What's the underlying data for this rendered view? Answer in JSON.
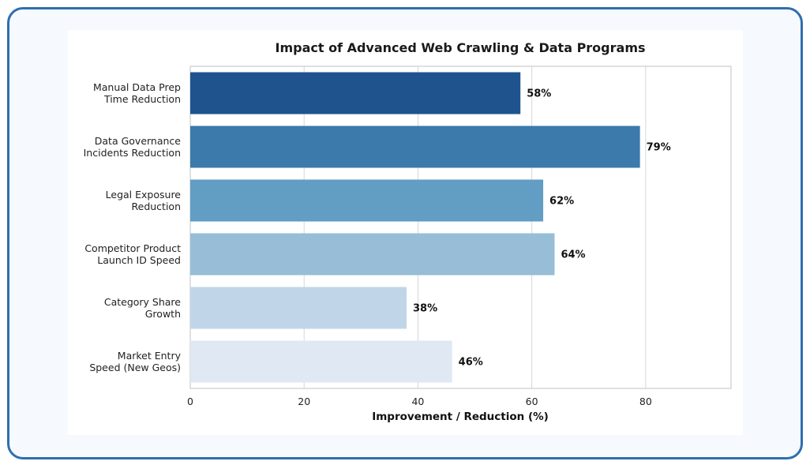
{
  "chart_data": {
    "type": "bar",
    "orientation": "horizontal",
    "title": "Impact of Advanced Web Crawling & Data Programs",
    "xlabel": "Improvement / Reduction (%)",
    "ylabel": "",
    "xlim": [
      0,
      95
    ],
    "xticks": [
      0,
      20,
      40,
      60,
      80
    ],
    "grid": true,
    "categories": [
      [
        "Manual Data Prep",
        "Time Reduction"
      ],
      [
        "Data Governance",
        "Incidents Reduction"
      ],
      [
        "Legal Exposure",
        "Reduction"
      ],
      [
        "Competitor Product",
        "Launch ID Speed"
      ],
      [
        "Category Share",
        "Growth"
      ],
      [
        "Market Entry",
        "Speed (New Geos)"
      ]
    ],
    "values": [
      58,
      79,
      62,
      64,
      38,
      46
    ],
    "value_labels": [
      "58%",
      "79%",
      "62%",
      "64%",
      "38%",
      "46%"
    ],
    "colors": [
      "#1f538d",
      "#3b7aab",
      "#629dc3",
      "#98bdd6",
      "#c1d5e8",
      "#e0e8f3"
    ]
  }
}
